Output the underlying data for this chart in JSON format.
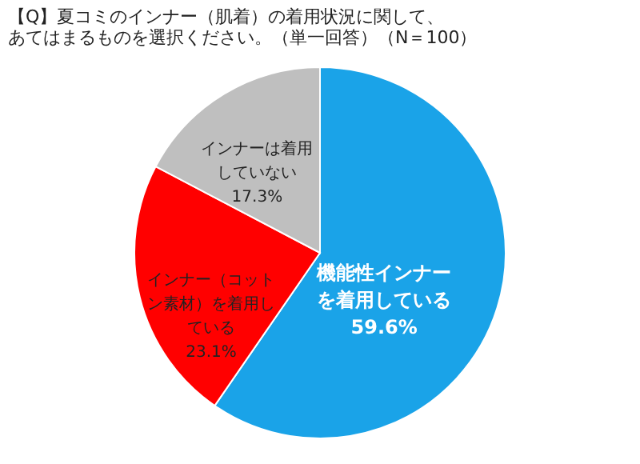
{
  "chart_data": {
    "type": "pie",
    "title": "【Q】夏コミのインナー（肌着）の着用状況に関して、あてはまるものを選択ください。（単一回答）（N＝100）",
    "categories": [
      "機能性インナーを着用している",
      "インナー（コットン素材）を着用している",
      "インナーは着用していない"
    ],
    "values": [
      59.6,
      23.1,
      17.3
    ],
    "value_labels": [
      "59.6%",
      "23.1%",
      "17.3%"
    ],
    "colors": [
      "#1aa3e8",
      "#ff0000",
      "#bfbfbf"
    ],
    "legend": false
  }
}
